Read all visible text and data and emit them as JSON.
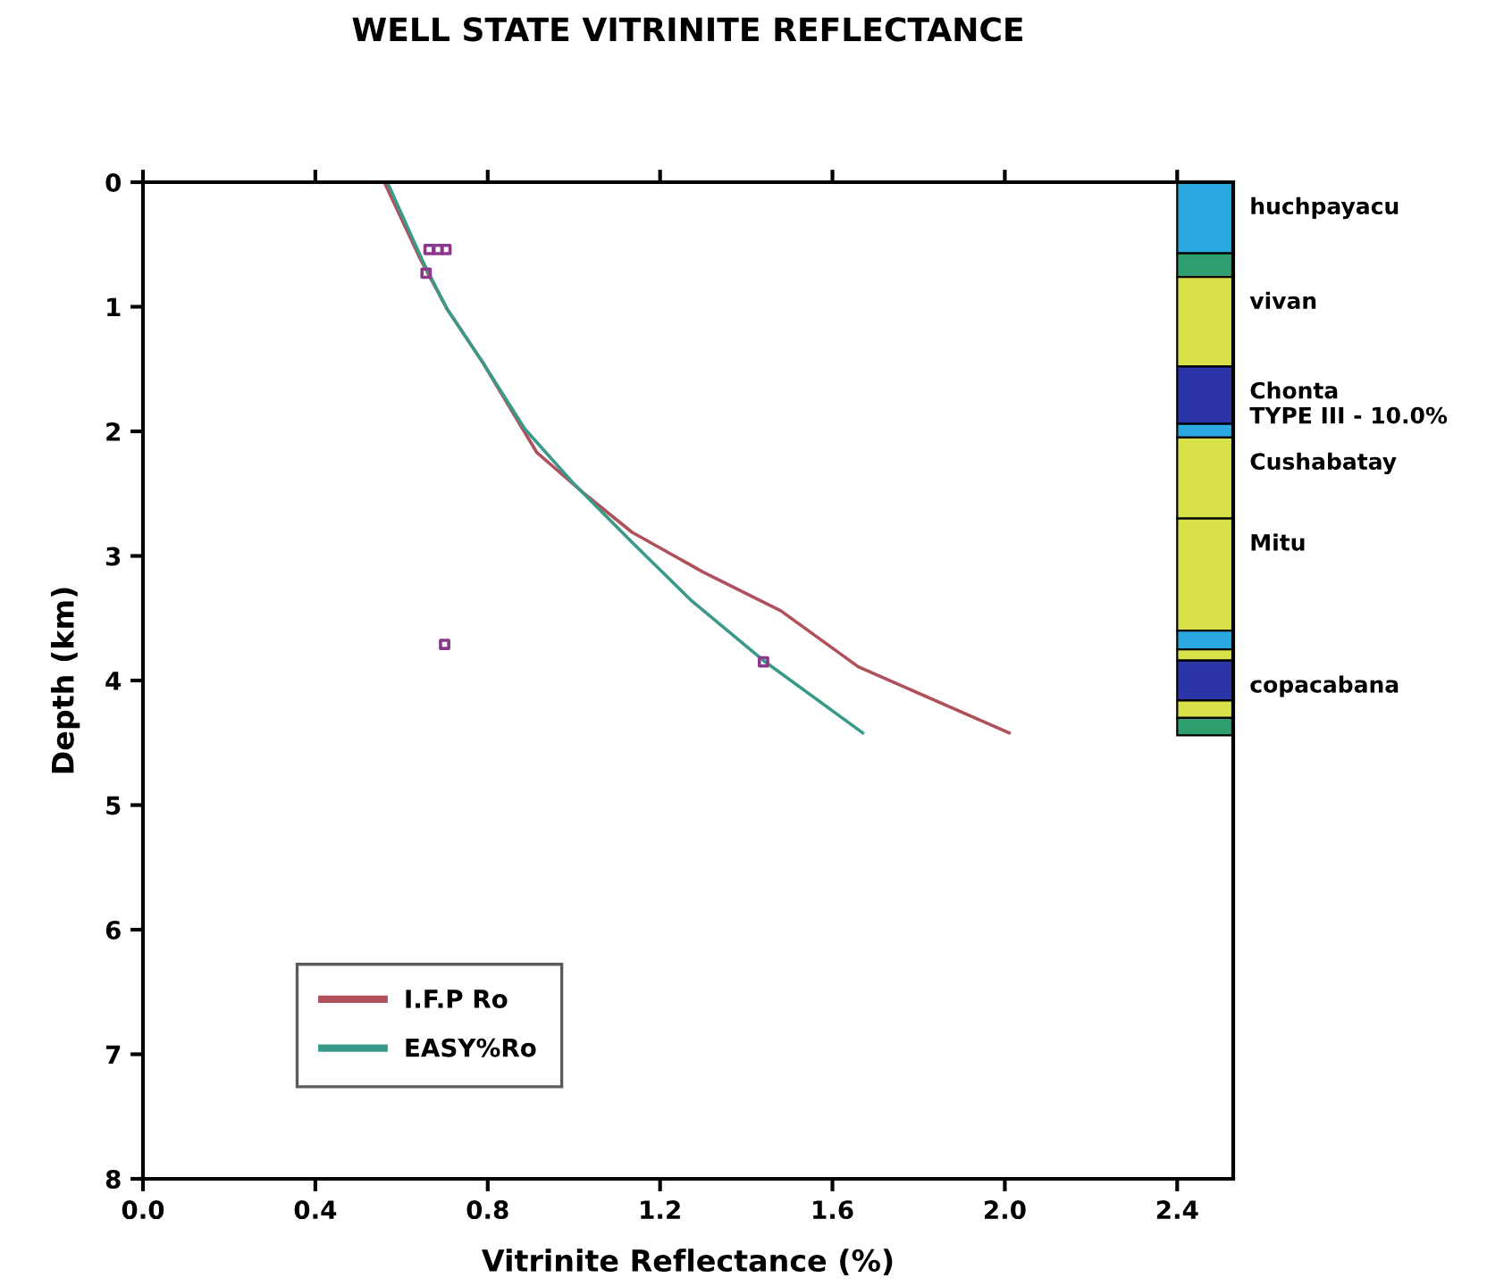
{
  "chart_data": {
    "type": "line",
    "title": "WELL STATE VITRINITE REFLECTANCE",
    "xlabel": "Vitrinite Reflectance (%)",
    "ylabel": "Depth (km)",
    "xlim": [
      0,
      2.53
    ],
    "ylim": [
      8,
      0
    ],
    "xticks": [
      {
        "value": 0,
        "label": "0.0"
      },
      {
        "value": 0.4,
        "label": "0.4"
      },
      {
        "value": 0.8,
        "label": "0.8"
      },
      {
        "value": 1.2,
        "label": "1.2"
      },
      {
        "value": 1.6,
        "label": "1.6"
      },
      {
        "value": 2.0,
        "label": "2.0"
      },
      {
        "value": 2.4,
        "label": "2.4"
      }
    ],
    "yticks": [
      0,
      1,
      2,
      3,
      4,
      5,
      6,
      7,
      8
    ],
    "grid": false,
    "legend": "bottom left",
    "series": [
      {
        "name": "I.F.P Ro",
        "color": "#b0505a",
        "x": [
          0.56,
          0.644,
          0.706,
          0.789,
          0.914,
          1.024,
          1.135,
          1.3,
          1.48,
          1.66,
          2.01
        ],
        "values": [
          0.0,
          0.62,
          1.02,
          1.45,
          2.17,
          2.5,
          2.81,
          3.13,
          3.44,
          3.89,
          4.42
        ]
      },
      {
        "name": "EASY%Ro",
        "color": "#3a9a8a",
        "x": [
          0.567,
          0.65,
          0.706,
          0.789,
          0.886,
          0.997,
          1.135,
          1.273,
          1.44,
          1.67
        ],
        "values": [
          0.0,
          0.64,
          1.02,
          1.45,
          1.98,
          2.41,
          2.89,
          3.36,
          3.84,
          4.42
        ]
      },
      {
        "type": "scatter",
        "marker": "square",
        "color": "#8b3a8b",
        "x": [
          0.664,
          0.685,
          0.703,
          0.657,
          0.7,
          1.44
        ],
        "values": [
          0.54,
          0.54,
          0.54,
          0.73,
          3.71,
          3.85
        ]
      }
    ],
    "bands": [
      {
        "axis": "y",
        "from": 0,
        "to": 0.57,
        "label": "huchpayacu",
        "color": "#2aa8e0"
      },
      {
        "axis": "y",
        "from": 0.57,
        "to": 0.76,
        "color": "#2e9e6e"
      },
      {
        "axis": "y",
        "from": 0.76,
        "to": 1.48,
        "label": "vivan",
        "color": "#d8e04a"
      },
      {
        "axis": "y",
        "from": 1.48,
        "to": 1.94,
        "label": "Chonta\nTYPE III - 10.0%",
        "color": "#2b35a8"
      },
      {
        "axis": "y",
        "from": 1.94,
        "to": 2.05,
        "color": "#2aa8e0"
      },
      {
        "axis": "y",
        "from": 2.05,
        "to": 2.7,
        "label": "Cushabatay",
        "color": "#d8e04a"
      },
      {
        "axis": "y",
        "from": 2.7,
        "to": 3.6,
        "label": "Mitu",
        "color": "#d8e04a"
      },
      {
        "axis": "y",
        "from": 3.6,
        "to": 3.75,
        "color": "#2aa8e0"
      },
      {
        "axis": "y",
        "from": 3.75,
        "to": 3.84,
        "color": "#d8e04a"
      },
      {
        "axis": "y",
        "from": 3.84,
        "to": 4.16,
        "label": "copacabana",
        "color": "#2b35a8"
      },
      {
        "axis": "y",
        "from": 4.16,
        "to": 4.3,
        "color": "#d8e04a"
      },
      {
        "axis": "y",
        "from": 4.3,
        "to": 4.44,
        "color": "#2e9e6e"
      }
    ]
  }
}
